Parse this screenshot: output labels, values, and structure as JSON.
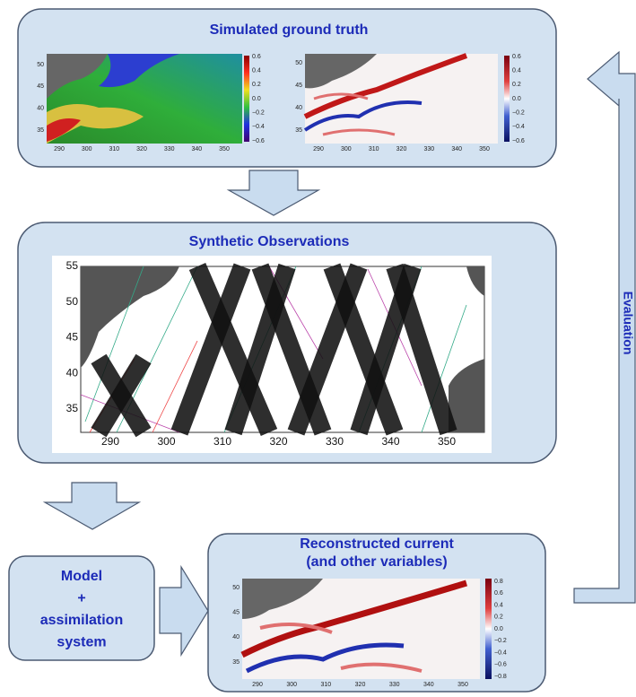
{
  "ground_truth": {
    "title": "Simulated ground truth",
    "map_left": {
      "yticks": [
        "50",
        "45",
        "40",
        "35"
      ],
      "xticks": [
        "290",
        "300",
        "310",
        "320",
        "330",
        "340",
        "350"
      ],
      "colorbar": [
        "0.6",
        "0.4",
        "0.2",
        "0.0",
        "−0.2",
        "−0.4",
        "−0.6"
      ]
    },
    "map_right": {
      "yticks": [
        "50",
        "45",
        "40",
        "35"
      ],
      "xticks": [
        "290",
        "300",
        "310",
        "320",
        "330",
        "340",
        "350"
      ],
      "colorbar": [
        "0.6",
        "0.4",
        "0.2",
        "0.0",
        "−0.2",
        "−0.4",
        "−0.6"
      ]
    }
  },
  "observations": {
    "title": "Synthetic Observations",
    "map": {
      "yticks": [
        "55",
        "50",
        "45",
        "40",
        "35"
      ],
      "xticks": [
        "290",
        "300",
        "310",
        "320",
        "330",
        "340",
        "350"
      ]
    }
  },
  "model": {
    "lines": [
      "Model",
      "+",
      "assimilation",
      "system"
    ]
  },
  "reconstruction": {
    "title_lines": [
      "Reconstructed current",
      "(and other variables)"
    ],
    "map": {
      "yticks": [
        "50",
        "45",
        "40",
        "35"
      ],
      "xticks": [
        "290",
        "300",
        "310",
        "320",
        "330",
        "340",
        "350"
      ],
      "colorbar": [
        "0.8",
        "0.6",
        "0.4",
        "0.2",
        "0.0",
        "−0.2",
        "−0.4",
        "−0.6",
        "−0.8"
      ]
    }
  },
  "evaluation": {
    "label": "Evaluation"
  }
}
